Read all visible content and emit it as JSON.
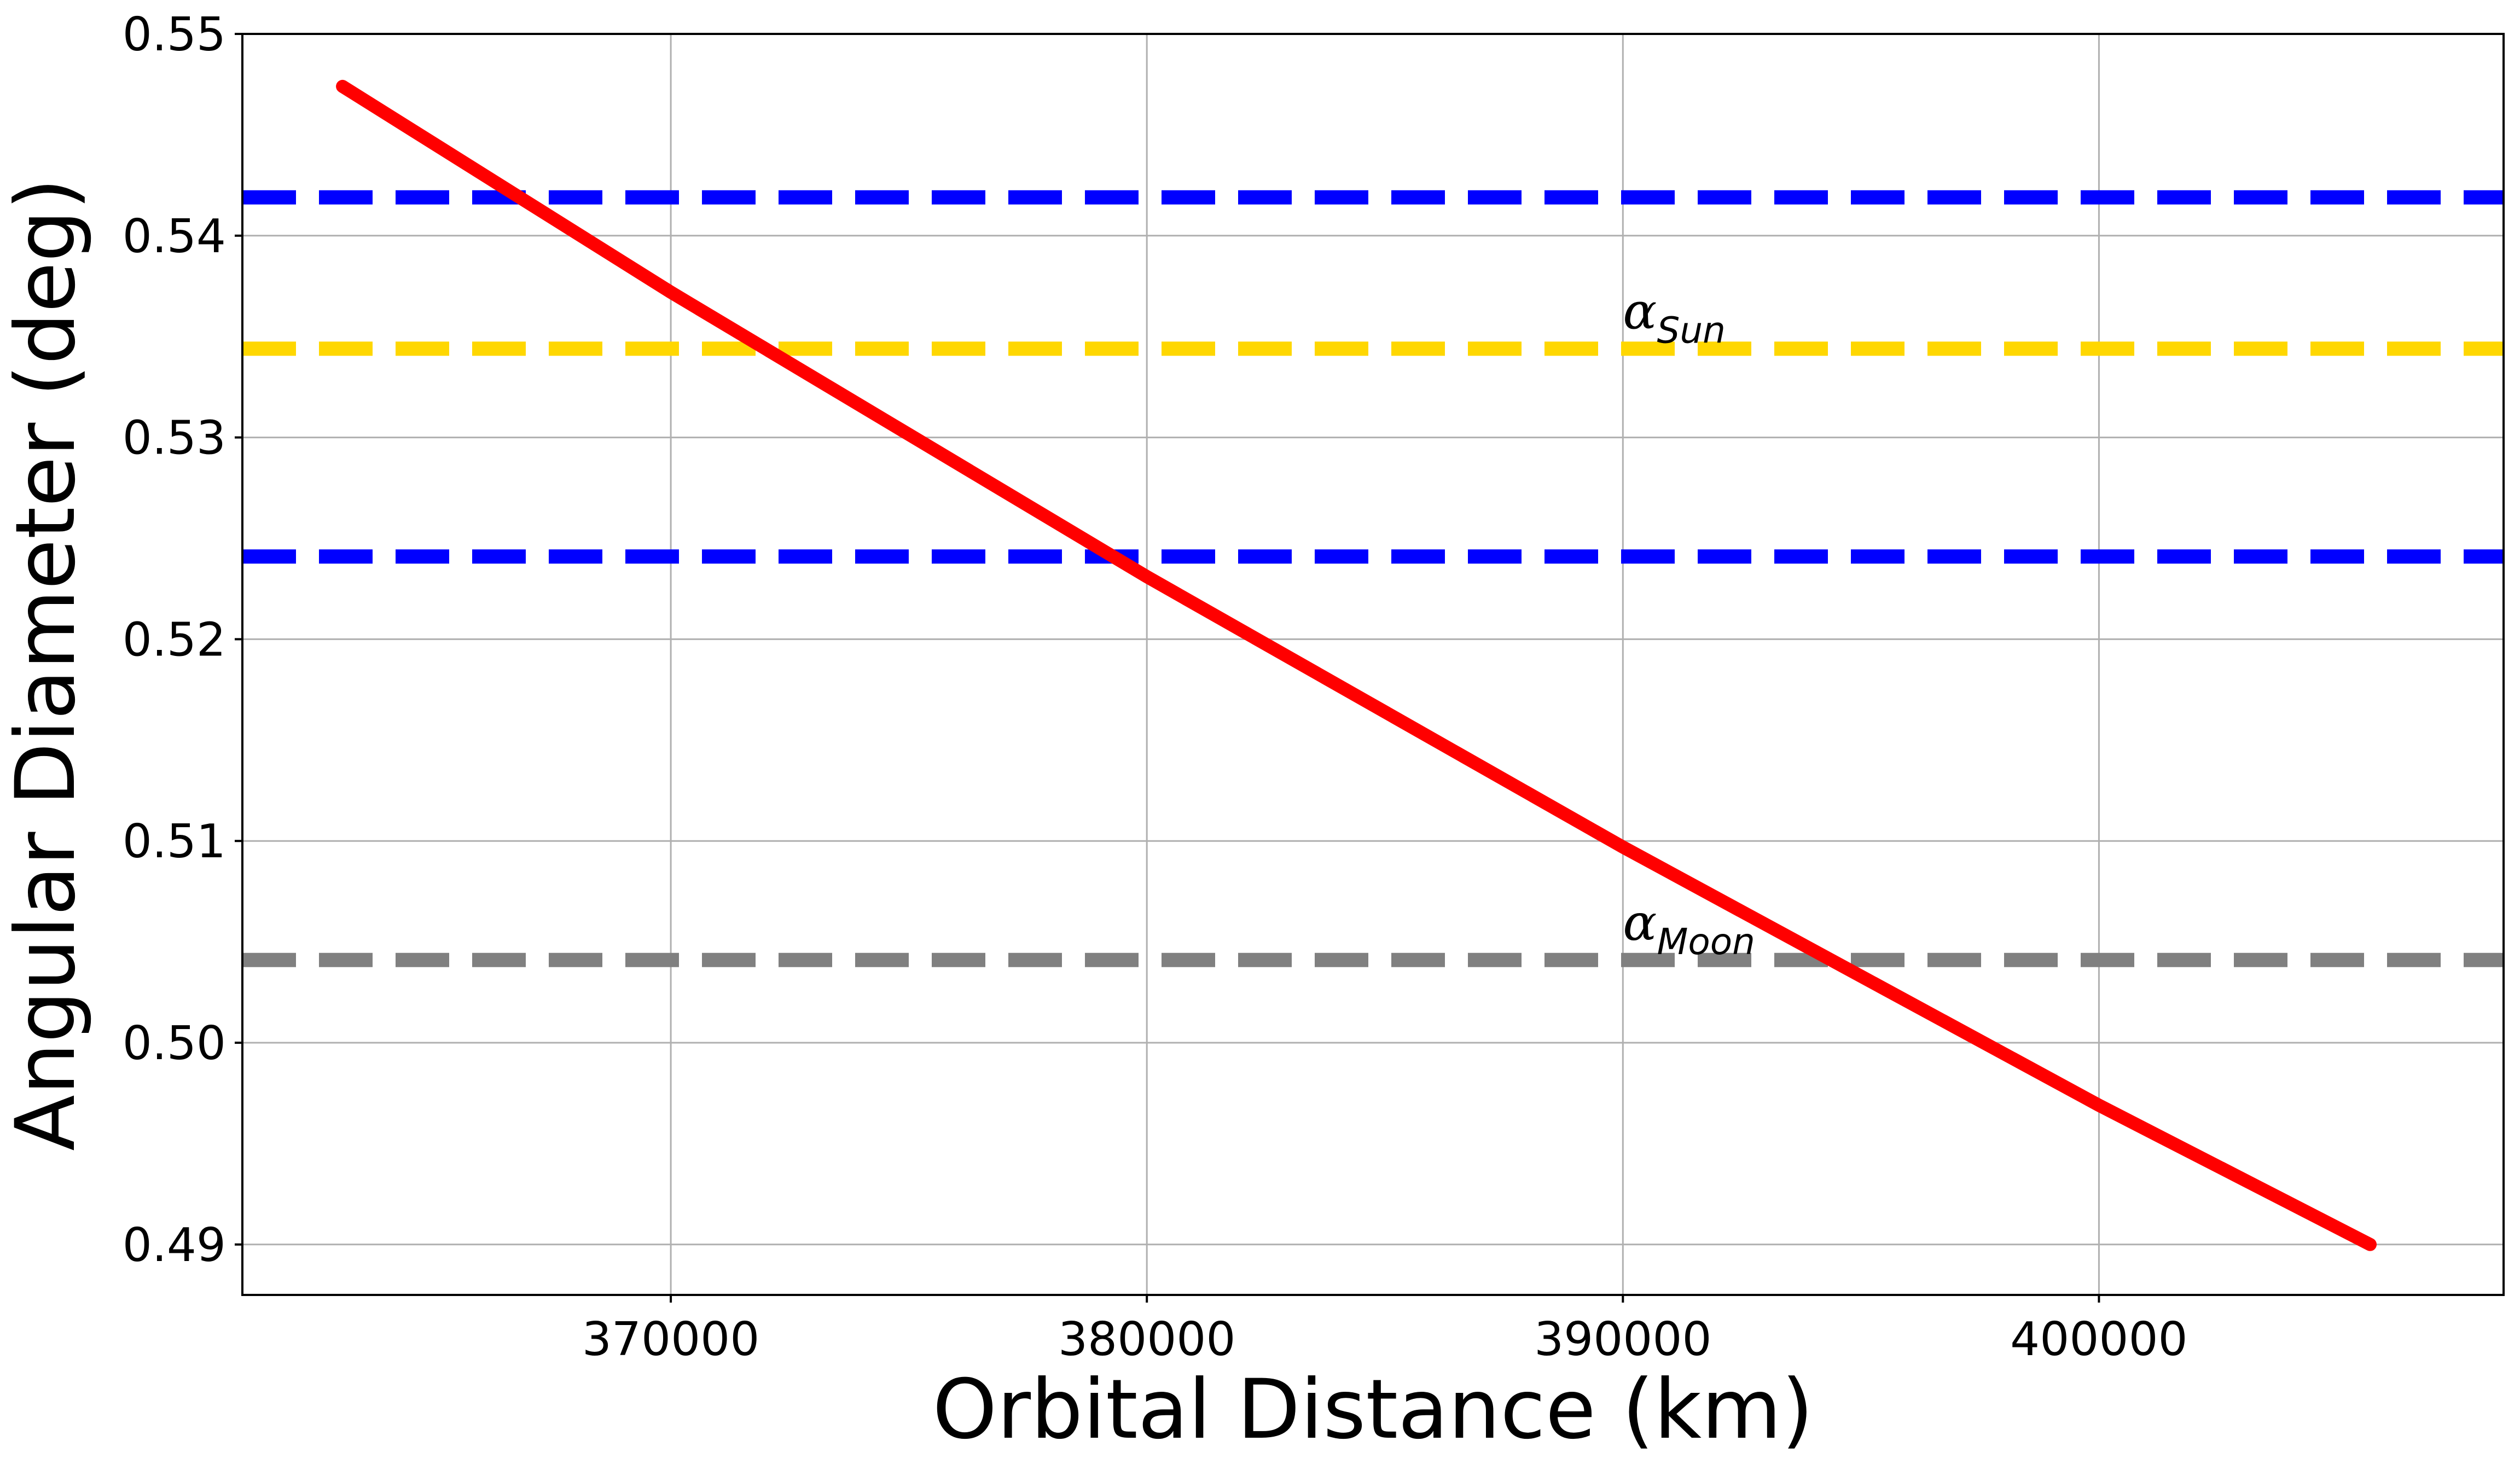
{
  "chart_data": {
    "type": "line",
    "xlabel": "Orbital Distance (km)",
    "ylabel": "Angular Diameter (deg)",
    "xlim": [
      361000,
      408500
    ],
    "ylim": [
      0.4875,
      0.55
    ],
    "xticks": [
      370000,
      380000,
      390000,
      400000
    ],
    "xtick_labels": [
      "370000",
      "380000",
      "390000",
      "400000"
    ],
    "yticks": [
      0.49,
      0.5,
      0.51,
      0.52,
      0.53,
      0.54,
      0.55
    ],
    "ytick_labels": [
      "0.49",
      "0.50",
      "0.51",
      "0.52",
      "0.53",
      "0.54",
      "0.55"
    ],
    "grid": true,
    "series": [
      {
        "color": "#ff0000",
        "style": "solid",
        "x": [
          363104,
          370000,
          380000,
          390000,
          400000,
          405696
        ],
        "y": [
          0.5474,
          0.5372,
          0.5231,
          0.5097,
          0.4969,
          0.49
        ]
      }
    ],
    "hlines": [
      {
        "y": 0.5419,
        "color": "#0000ff",
        "style": "dashed"
      },
      {
        "y": 0.5344,
        "color": "#ffd700",
        "style": "dashed"
      },
      {
        "y": 0.5241,
        "color": "#0000ff",
        "style": "dashed"
      },
      {
        "y": 0.5041,
        "color": "#808080",
        "style": "dashed"
      }
    ],
    "annotations": [
      {
        "main": "α",
        "sub": "Sun",
        "x": 390000,
        "y": 0.5354
      },
      {
        "main": "α",
        "sub": "Moon",
        "x": 390000,
        "y": 0.5051
      }
    ]
  }
}
